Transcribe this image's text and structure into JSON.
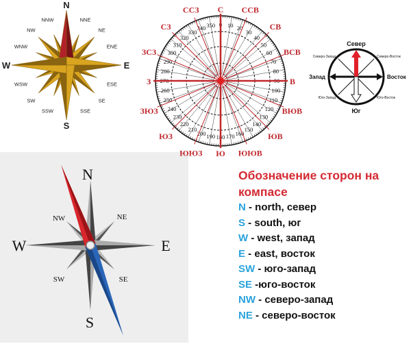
{
  "rose16": {
    "labels": [
      {
        "text": "N",
        "bearing": 0,
        "major": true
      },
      {
        "text": "NNE",
        "bearing": 22.5
      },
      {
        "text": "NE",
        "bearing": 45
      },
      {
        "text": "ENE",
        "bearing": 67.5
      },
      {
        "text": "E",
        "bearing": 90,
        "major": true
      },
      {
        "text": "ESE",
        "bearing": 112.5
      },
      {
        "text": "SE",
        "bearing": 135
      },
      {
        "text": "SSE",
        "bearing": 157.5
      },
      {
        "text": "S",
        "bearing": 180,
        "major": true
      },
      {
        "text": "SSW",
        "bearing": 202.5
      },
      {
        "text": "SW",
        "bearing": 225
      },
      {
        "text": "WSW",
        "bearing": 247.5
      },
      {
        "text": "W",
        "bearing": 270,
        "major": true
      },
      {
        "text": "WNW",
        "bearing": 292.5
      },
      {
        "text": "NW",
        "bearing": 315
      },
      {
        "text": "NNW",
        "bearing": 337.5
      }
    ],
    "colors": {
      "gold": "#d9a520",
      "gold_dark": "#8a6410",
      "north": "#b3202a"
    }
  },
  "polar": {
    "degrees": [
      0,
      10,
      20,
      30,
      40,
      50,
      60,
      70,
      80,
      90,
      100,
      110,
      120,
      130,
      140,
      150,
      160,
      170,
      180,
      190,
      200,
      210,
      220,
      230,
      240,
      250,
      260,
      270,
      280,
      290,
      300,
      310,
      320,
      330,
      340,
      350
    ],
    "directions": [
      {
        "text": "С",
        "bearing": 0
      },
      {
        "text": "ССВ",
        "bearing": 22.5
      },
      {
        "text": "СВ",
        "bearing": 45
      },
      {
        "text": "ВСВ",
        "bearing": 67.5
      },
      {
        "text": "В",
        "bearing": 90
      },
      {
        "text": "ВЮВ",
        "bearing": 112.5
      },
      {
        "text": "ЮВ",
        "bearing": 135
      },
      {
        "text": "ЮЮВ",
        "bearing": 157.5
      },
      {
        "text": "Ю",
        "bearing": 180
      },
      {
        "text": "ЮЮЗ",
        "bearing": 202.5
      },
      {
        "text": "ЮЗ",
        "bearing": 225
      },
      {
        "text": "ЗЮЗ",
        "bearing": 247.5
      },
      {
        "text": "З",
        "bearing": 270
      },
      {
        "text": "ЗСЗ",
        "bearing": 292.5
      },
      {
        "text": "СЗ",
        "bearing": 315
      },
      {
        "text": "ССЗ",
        "bearing": 337.5
      }
    ],
    "color": "#c0282e"
  },
  "ru_compass": {
    "north": "Север",
    "south": "Юг",
    "west": "Запад",
    "east": "Восток",
    "northwest": "Северо-Запад",
    "northeast": "Северо-Восток",
    "southwest": "Юго-Запад",
    "southeast": "Юго-Восток",
    "arrow_color": "#e0202a"
  },
  "needle_compass": {
    "north": "N",
    "south": "S",
    "west": "W",
    "east": "E",
    "northwest": "NW",
    "northeast": "NE",
    "southwest": "SW",
    "southeast": "SE",
    "colors": {
      "needle_north": "#d8262c",
      "needle_south": "#2a66b8",
      "background": "#eeeeee"
    }
  },
  "legend": {
    "title": "Обозначение сторон на компасе",
    "items": [
      {
        "key": "N",
        "text": " - north, север"
      },
      {
        "key": "S",
        "text": " - south, юг"
      },
      {
        "key": "W",
        "text": " - west, запад"
      },
      {
        "key": "E",
        "text": " - east, восток"
      },
      {
        "key": "SW",
        "text": " - юго-запад"
      },
      {
        "key": " SE",
        "text": " -юго-восток"
      },
      {
        "key": "NW",
        "text": " - северо-запад"
      },
      {
        "key": " NE",
        "text": " - северо-восток"
      }
    ]
  }
}
